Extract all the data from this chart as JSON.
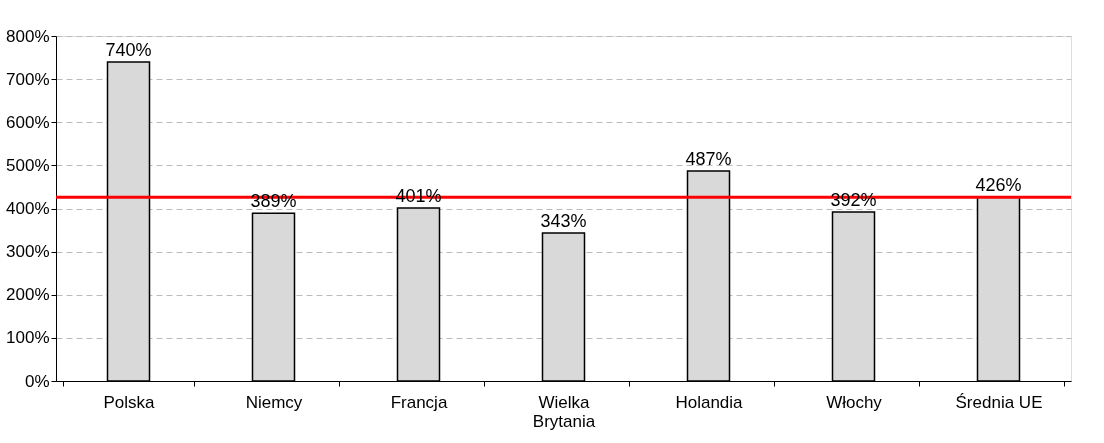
{
  "chart_data": {
    "type": "bar",
    "categories": [
      "Polska",
      "Niemcy",
      "Francja",
      "Wielka Brytania",
      "Holandia",
      "Włochy",
      "Średnia UE"
    ],
    "values": [
      740,
      389,
      401,
      343,
      487,
      392,
      426
    ],
    "value_labels": [
      "740%",
      "389%",
      "401%",
      "343%",
      "487%",
      "392%",
      "426%"
    ],
    "color": "#d9d9d9",
    "ylim": [
      0,
      800
    ],
    "yticks": [
      {
        "value": 0,
        "label": "0%"
      },
      {
        "value": 100,
        "label": "100%"
      },
      {
        "value": 200,
        "label": "200%"
      },
      {
        "value": 300,
        "label": "300%"
      },
      {
        "value": 400,
        "label": "400%"
      },
      {
        "value": 500,
        "label": "500%"
      },
      {
        "value": 600,
        "label": "600%"
      },
      {
        "value": 700,
        "label": "700%"
      },
      {
        "value": 800,
        "label": "800%"
      }
    ],
    "grid": "y",
    "ref_lines": [
      {
        "axis": "y",
        "value": 426,
        "color": "#ff0000"
      }
    ]
  }
}
